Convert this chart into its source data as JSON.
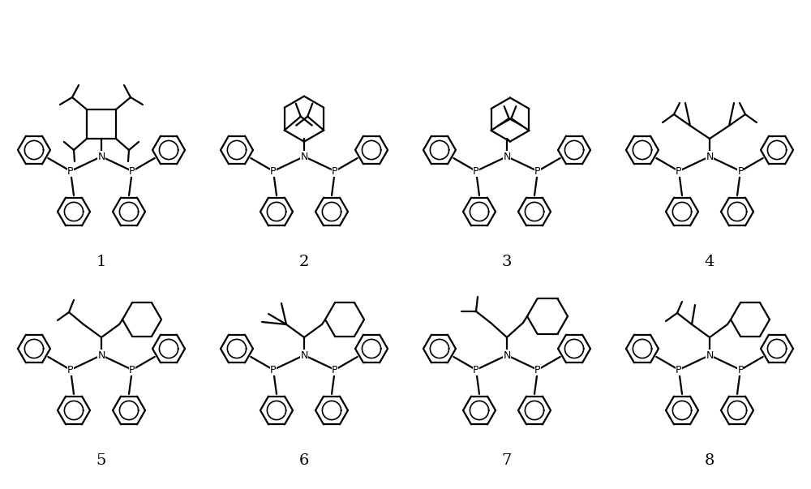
{
  "background_color": "#ffffff",
  "line_color": "#000000",
  "line_width": 1.6,
  "label_fontsize": 14,
  "figure_width": 10.0,
  "figure_height": 6.03,
  "dpi": 100,
  "xlim": [
    0,
    10
  ],
  "ylim": [
    0,
    6.03
  ]
}
